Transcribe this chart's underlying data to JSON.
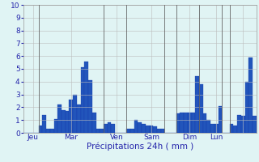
{
  "title": "",
  "xlabel": "Précipitations 24h ( mm )",
  "ylabel": "",
  "ylim": [
    0,
    10
  ],
  "yticks": [
    0,
    1,
    2,
    3,
    4,
    5,
    6,
    7,
    8,
    9,
    10
  ],
  "background_color": "#e0f4f4",
  "bar_color": "#2255bb",
  "bar_edge_color": "#1133aa",
  "grid_color_h": "#bbbbbb",
  "grid_color_v": "#bbbbbb",
  "day_line_color": "#666666",
  "values": [
    0.0,
    0.0,
    0.0,
    0.0,
    0.6,
    1.4,
    0.3,
    0.3,
    1.1,
    2.2,
    1.8,
    1.7,
    2.6,
    3.0,
    2.2,
    5.1,
    5.6,
    4.1,
    1.6,
    0.3,
    0.3,
    0.7,
    0.8,
    0.7,
    0.0,
    0.0,
    0.0,
    0.3,
    0.3,
    1.0,
    0.8,
    0.7,
    0.6,
    0.6,
    0.5,
    0.3,
    0.3,
    0.0,
    0.0,
    0.0,
    1.5,
    1.6,
    1.6,
    1.6,
    1.6,
    4.4,
    3.8,
    1.5,
    1.0,
    0.7,
    0.7,
    2.1,
    0.0,
    0.0,
    0.7,
    0.6,
    1.4,
    1.3,
    4.0,
    5.9,
    1.3
  ],
  "vline_xpositions": [
    4,
    21,
    27,
    37,
    40,
    46,
    52,
    54
  ],
  "tick_positions": [
    2,
    12,
    24,
    33,
    43,
    50,
    57
  ],
  "tick_labels": [
    "Jeu",
    "Mar",
    "Ven",
    "Sam",
    "Dim",
    "Lun",
    ""
  ],
  "xlabel_color": "#2222aa",
  "tick_color": "#2222aa",
  "ylabel_color": "#2222aa"
}
